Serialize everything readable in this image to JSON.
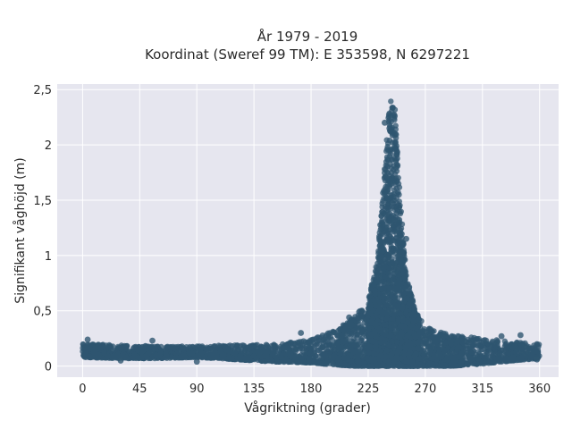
{
  "chart_data": {
    "type": "scatter",
    "title_line1": "År 1979 - 2019",
    "title_line2": "Koordinat (Sweref 99 TM): E 353598, N 6297221",
    "xlabel": "Vågriktning (grader)",
    "ylabel": "Signifikant våghöjd (m)",
    "xlim": [
      -20,
      375
    ],
    "ylim": [
      -0.1,
      2.55
    ],
    "x_ticks": [
      0,
      45,
      90,
      135,
      180,
      225,
      270,
      315,
      360
    ],
    "x_tick_labels": [
      "0",
      "45",
      "90",
      "135",
      "180",
      "225",
      "270",
      "315",
      "360"
    ],
    "y_ticks": [
      0,
      0.5,
      1,
      1.5,
      2,
      2.5
    ],
    "y_tick_labels": [
      "0",
      "0,5",
      "1",
      "1,5",
      "2",
      "2,5"
    ],
    "grid": true,
    "series_color": "#2f5670",
    "background_color": "#e6e6ef",
    "density_profile": {
      "direction": [
        0,
        30,
        60,
        90,
        120,
        150,
        180,
        200,
        215,
        225,
        232,
        238,
        242,
        246,
        250,
        255,
        262,
        270,
        290,
        315,
        340,
        360
      ],
      "lower_hs": [
        0.08,
        0.07,
        0.07,
        0.08,
        0.06,
        0.04,
        0.03,
        0.01,
        0.0,
        0.0,
        0.0,
        0.0,
        0.0,
        0.0,
        0.0,
        0.0,
        0.0,
        0.0,
        0.0,
        0.02,
        0.05,
        0.07
      ],
      "upper_hs": [
        0.2,
        0.19,
        0.18,
        0.18,
        0.19,
        0.2,
        0.24,
        0.33,
        0.45,
        0.6,
        0.95,
        1.8,
        2.42,
        2.35,
        1.55,
        0.85,
        0.5,
        0.35,
        0.28,
        0.25,
        0.22,
        0.2
      ]
    },
    "outliers": [
      {
        "x": 4,
        "y": 0.24
      },
      {
        "x": 30,
        "y": 0.05
      },
      {
        "x": 55,
        "y": 0.23
      },
      {
        "x": 90,
        "y": 0.04
      },
      {
        "x": 172,
        "y": 0.3
      },
      {
        "x": 210,
        "y": 0.44
      },
      {
        "x": 255,
        "y": 1.15
      },
      {
        "x": 238,
        "y": 2.2
      },
      {
        "x": 330,
        "y": 0.27
      },
      {
        "x": 345,
        "y": 0.28
      },
      {
        "x": 358,
        "y": 0.06
      }
    ]
  }
}
